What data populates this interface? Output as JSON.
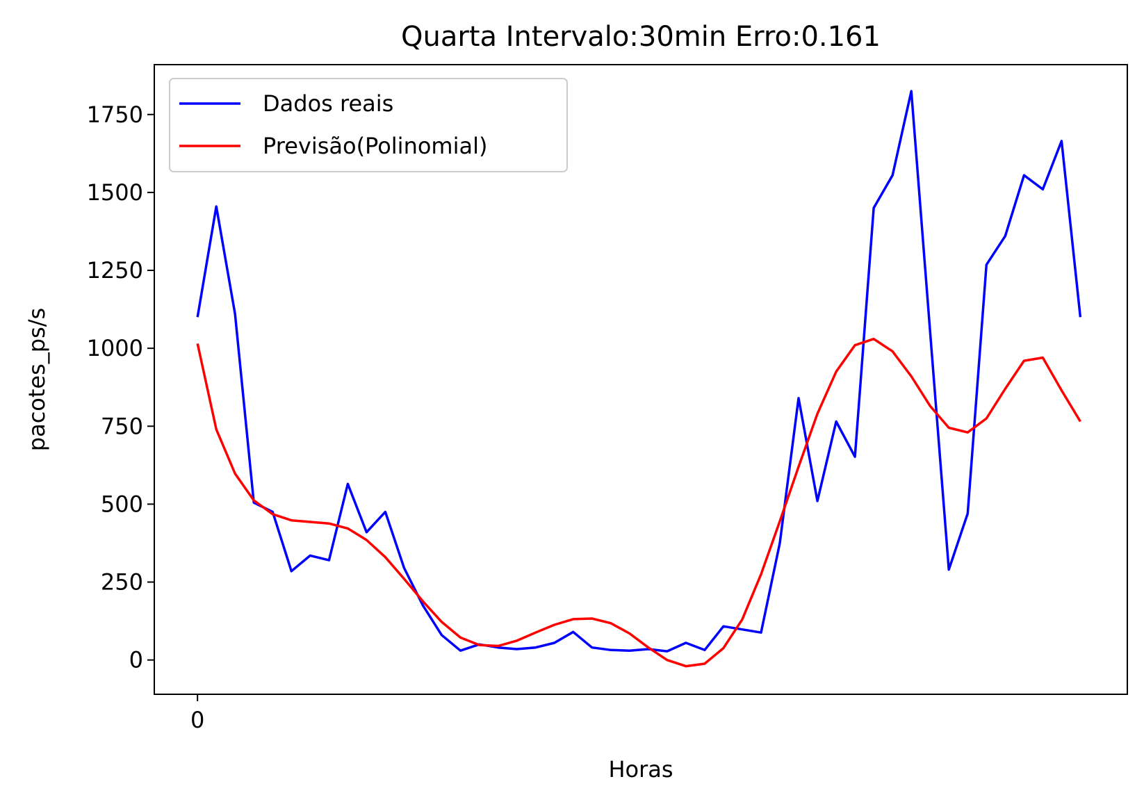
{
  "chart_data": {
    "type": "line",
    "title": "Quarta Intervalo:30min Erro:0.161",
    "xlabel": "Horas",
    "ylabel": "pacotes_ps/s",
    "xlim": [
      -2.3,
      49.5
    ],
    "ylim": [
      -110,
      1910
    ],
    "x_ticks": [
      0
    ],
    "y_ticks": [
      0,
      250,
      500,
      750,
      1000,
      1250,
      1500,
      1750
    ],
    "legend_position": "upper left",
    "x": [
      0,
      1,
      2,
      3,
      4,
      5,
      6,
      7,
      8,
      9,
      10,
      11,
      12,
      13,
      14,
      15,
      16,
      17,
      18,
      19,
      20,
      21,
      22,
      23,
      24,
      25,
      26,
      27,
      28,
      29,
      30,
      31,
      32,
      33,
      34,
      35,
      36,
      37,
      38,
      39,
      40,
      41,
      42,
      43,
      44,
      45,
      46,
      47
    ],
    "series": [
      {
        "name": "Dados reais",
        "color": "#0000ff",
        "values": [
          1100,
          1455,
          1110,
          505,
          475,
          285,
          335,
          320,
          565,
          410,
          475,
          295,
          175,
          80,
          30,
          50,
          40,
          35,
          40,
          55,
          90,
          40,
          32,
          30,
          35,
          28,
          55,
          32,
          108,
          98,
          88,
          375,
          840,
          510,
          765,
          652,
          1450,
          1555,
          1825,
          1055,
          290,
          470,
          1268,
          1360,
          1555,
          1510,
          1665,
          1100
        ]
      },
      {
        "name": "Previsão(Polinomial)",
        "color": "#ff0000",
        "values": [
          1015,
          740,
          598,
          512,
          468,
          448,
          443,
          438,
          422,
          385,
          330,
          260,
          188,
          122,
          72,
          48,
          45,
          62,
          88,
          113,
          131,
          133,
          118,
          85,
          40,
          0,
          -20,
          -12,
          38,
          130,
          275,
          445,
          620,
          790,
          925,
          1010,
          1030,
          990,
          910,
          815,
          745,
          730,
          775,
          870,
          960,
          970,
          865,
          765
        ]
      }
    ]
  }
}
